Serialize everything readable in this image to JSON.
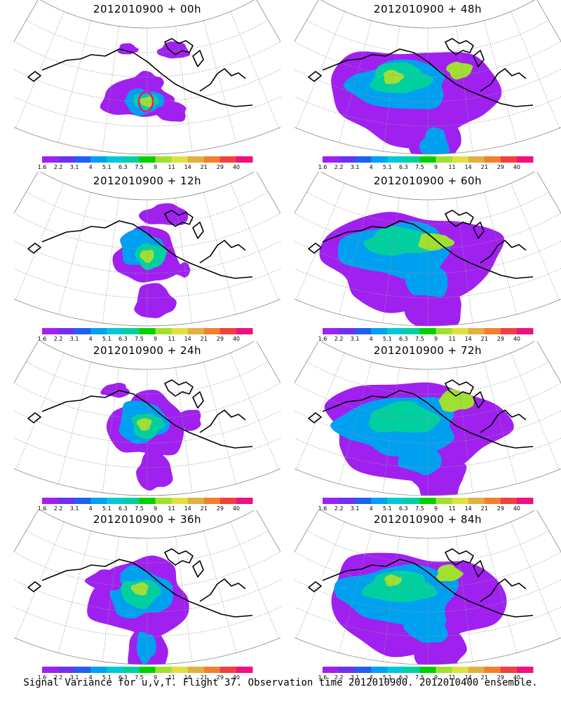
{
  "chart_data": [
    {
      "type": "heatmap",
      "title": "2012010900 + 00h"
    },
    {
      "type": "heatmap",
      "title": "2012010900 + 48h"
    },
    {
      "type": "heatmap",
      "title": "2012010900 + 12h"
    },
    {
      "type": "heatmap",
      "title": "2012010900 + 60h"
    },
    {
      "type": "heatmap",
      "title": "2012010900 + 24h"
    },
    {
      "type": "heatmap",
      "title": "2012010900 + 72h"
    },
    {
      "type": "heatmap",
      "title": "2012010900 + 36h"
    },
    {
      "type": "heatmap",
      "title": "2012010900 + 84h"
    }
  ],
  "colorbar": {
    "labels": [
      "1.6",
      "2.2",
      "3.1",
      "4",
      "5.1",
      "6.3",
      "7.5",
      "9",
      "11",
      "14",
      "21",
      "29",
      "40"
    ],
    "colors": [
      "#a020f0",
      "#7030f0",
      "#2060f0",
      "#00a0f0",
      "#00c8d8",
      "#00d0a0",
      "#00d000",
      "#a0e030",
      "#e0e040",
      "#e0b040",
      "#f08030",
      "#f04040",
      "#f01080"
    ]
  },
  "footer": "Signal Variance for u,v,T. Flight 37. Observation time 2012010900. 2012010400 ensemble."
}
